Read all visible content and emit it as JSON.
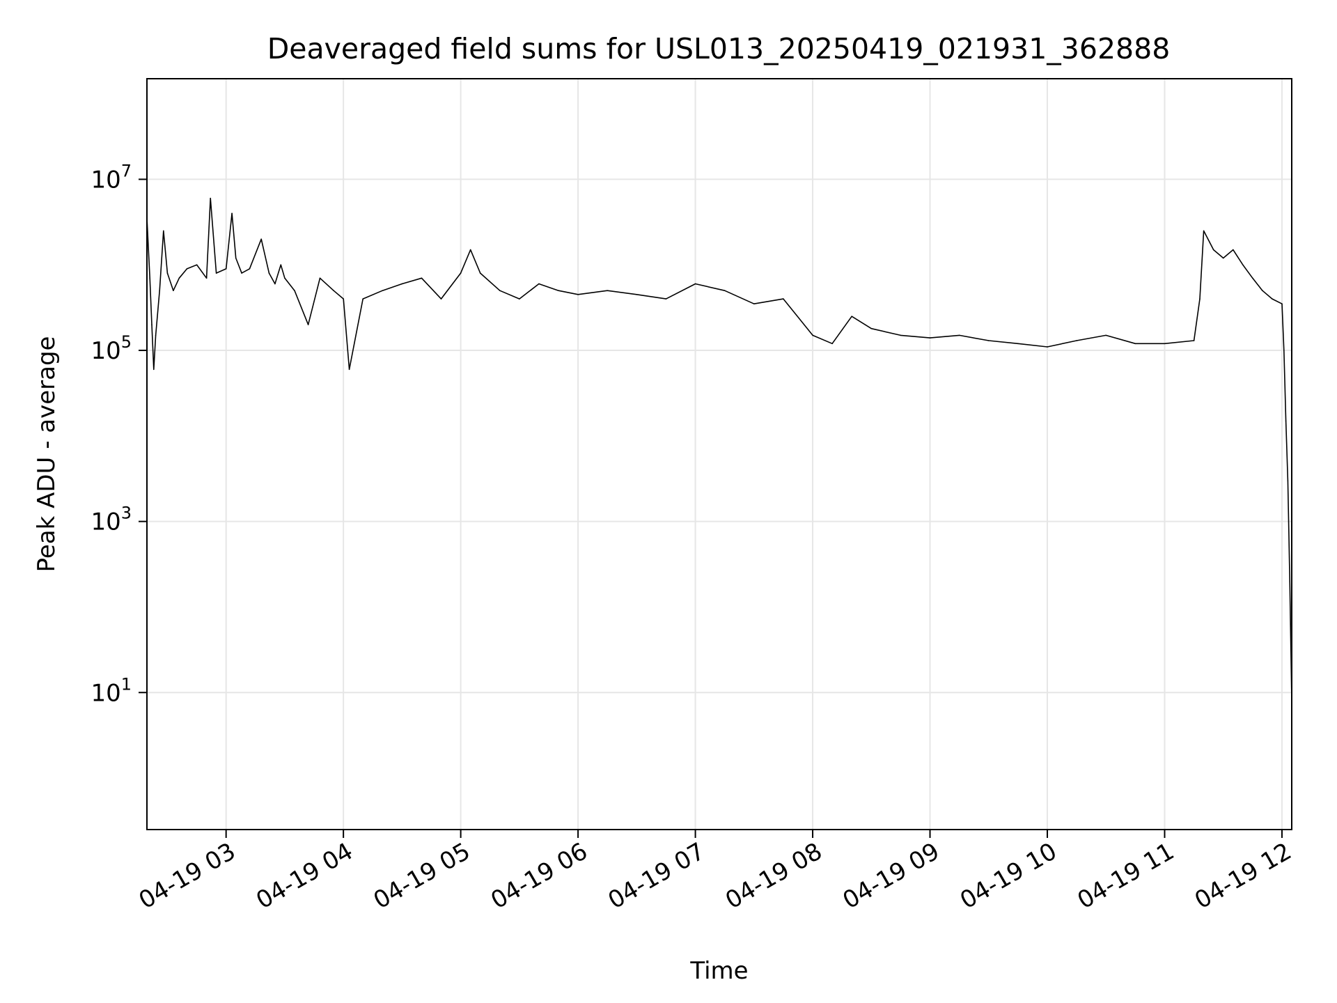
{
  "chart_data": {
    "type": "line",
    "title": "Deaveraged field sums for USL013_20250419_021931_362888",
    "xlabel": "Time",
    "ylabel": "Peak ADU - average",
    "yscale": "log",
    "ylim": [
      0.25,
      150000000.0
    ],
    "xlim": [
      "2025-04-19 02:19:31",
      "2025-04-19 12:05:00"
    ],
    "grid": true,
    "legend": "none",
    "line_color": "#000000",
    "x_ticks": [
      {
        "value": "2025-04-19 03:00",
        "label": "04-19 03"
      },
      {
        "value": "2025-04-19 04:00",
        "label": "04-19 04"
      },
      {
        "value": "2025-04-19 05:00",
        "label": "04-19 05"
      },
      {
        "value": "2025-04-19 06:00",
        "label": "04-19 06"
      },
      {
        "value": "2025-04-19 07:00",
        "label": "04-19 07"
      },
      {
        "value": "2025-04-19 08:00",
        "label": "04-19 08"
      },
      {
        "value": "2025-04-19 09:00",
        "label": "04-19 09"
      },
      {
        "value": "2025-04-19 10:00",
        "label": "04-19 10"
      },
      {
        "value": "2025-04-19 11:00",
        "label": "04-19 11"
      },
      {
        "value": "2025-04-19 12:00",
        "label": "04-19 12"
      }
    ],
    "y_ticks": [
      {
        "value": 10,
        "base": "10",
        "exp": "1"
      },
      {
        "value": 1000,
        "base": "10",
        "exp": "3"
      },
      {
        "value": 100000,
        "base": "10",
        "exp": "5"
      },
      {
        "value": 10000000,
        "base": "10",
        "exp": "7"
      }
    ],
    "series": [
      {
        "x": [
          "2025-04-19 02:19:31",
          "2025-04-19 02:21",
          "2025-04-19 02:22",
          "2025-04-19 02:23",
          "2025-04-19 02:24",
          "2025-04-19 02:26",
          "2025-04-19 02:28",
          "2025-04-19 02:30",
          "2025-04-19 02:33",
          "2025-04-19 02:36",
          "2025-04-19 02:40",
          "2025-04-19 02:45",
          "2025-04-19 02:50",
          "2025-04-19 02:52",
          "2025-04-19 02:55",
          "2025-04-19 03:00",
          "2025-04-19 03:03",
          "2025-04-19 03:05",
          "2025-04-19 03:08",
          "2025-04-19 03:12",
          "2025-04-19 03:18",
          "2025-04-19 03:22",
          "2025-04-19 03:25",
          "2025-04-19 03:28",
          "2025-04-19 03:30",
          "2025-04-19 03:35",
          "2025-04-19 03:42",
          "2025-04-19 03:48",
          "2025-04-19 03:55",
          "2025-04-19 04:00",
          "2025-04-19 04:03",
          "2025-04-19 04:10",
          "2025-04-19 04:20",
          "2025-04-19 04:30",
          "2025-04-19 04:40",
          "2025-04-19 04:50",
          "2025-04-19 05:00",
          "2025-04-19 05:05",
          "2025-04-19 05:10",
          "2025-04-19 05:20",
          "2025-04-19 05:30",
          "2025-04-19 05:40",
          "2025-04-19 05:50",
          "2025-04-19 06:00",
          "2025-04-19 06:15",
          "2025-04-19 06:30",
          "2025-04-19 06:45",
          "2025-04-19 07:00",
          "2025-04-19 07:15",
          "2025-04-19 07:30",
          "2025-04-19 07:45",
          "2025-04-19 08:00",
          "2025-04-19 08:10",
          "2025-04-19 08:20",
          "2025-04-19 08:30",
          "2025-04-19 08:45",
          "2025-04-19 09:00",
          "2025-04-19 09:15",
          "2025-04-19 09:30",
          "2025-04-19 09:45",
          "2025-04-19 10:00",
          "2025-04-19 10:15",
          "2025-04-19 10:30",
          "2025-04-19 10:45",
          "2025-04-19 11:00",
          "2025-04-19 11:15",
          "2025-04-19 11:18",
          "2025-04-19 11:20",
          "2025-04-19 11:25",
          "2025-04-19 11:30",
          "2025-04-19 11:35",
          "2025-04-19 11:40",
          "2025-04-19 11:45",
          "2025-04-19 11:50",
          "2025-04-19 11:55",
          "2025-04-19 12:00",
          "2025-04-19 12:01",
          "2025-04-19 12:02",
          "2025-04-19 12:03",
          "2025-04-19 12:04",
          "2025-04-19 12:05"
        ],
        "y": [
          3500000,
          700000,
          200000,
          60000,
          150000,
          500000,
          2500000,
          800000,
          500000,
          700000,
          900000,
          1000000,
          700000,
          6000000,
          800000,
          900000,
          4000000,
          1200000,
          800000,
          900000,
          2000000,
          800000,
          600000,
          1000000,
          700000,
          500000,
          200000,
          700000,
          500000,
          400000,
          60000,
          400000,
          500000,
          600000,
          700000,
          400000,
          800000,
          1500000,
          800000,
          500000,
          400000,
          600000,
          500000,
          450000,
          500000,
          450000,
          400000,
          600000,
          500000,
          350000,
          400000,
          150000,
          120000,
          250000,
          180000,
          150000,
          140000,
          150000,
          130000,
          120000,
          110000,
          130000,
          150000,
          120000,
          120000,
          130000,
          400000,
          2500000,
          1500000,
          1200000,
          1500000,
          1000000,
          700000,
          500000,
          400000,
          350000,
          100000,
          15000,
          3000,
          200,
          8
        ]
      }
    ]
  }
}
